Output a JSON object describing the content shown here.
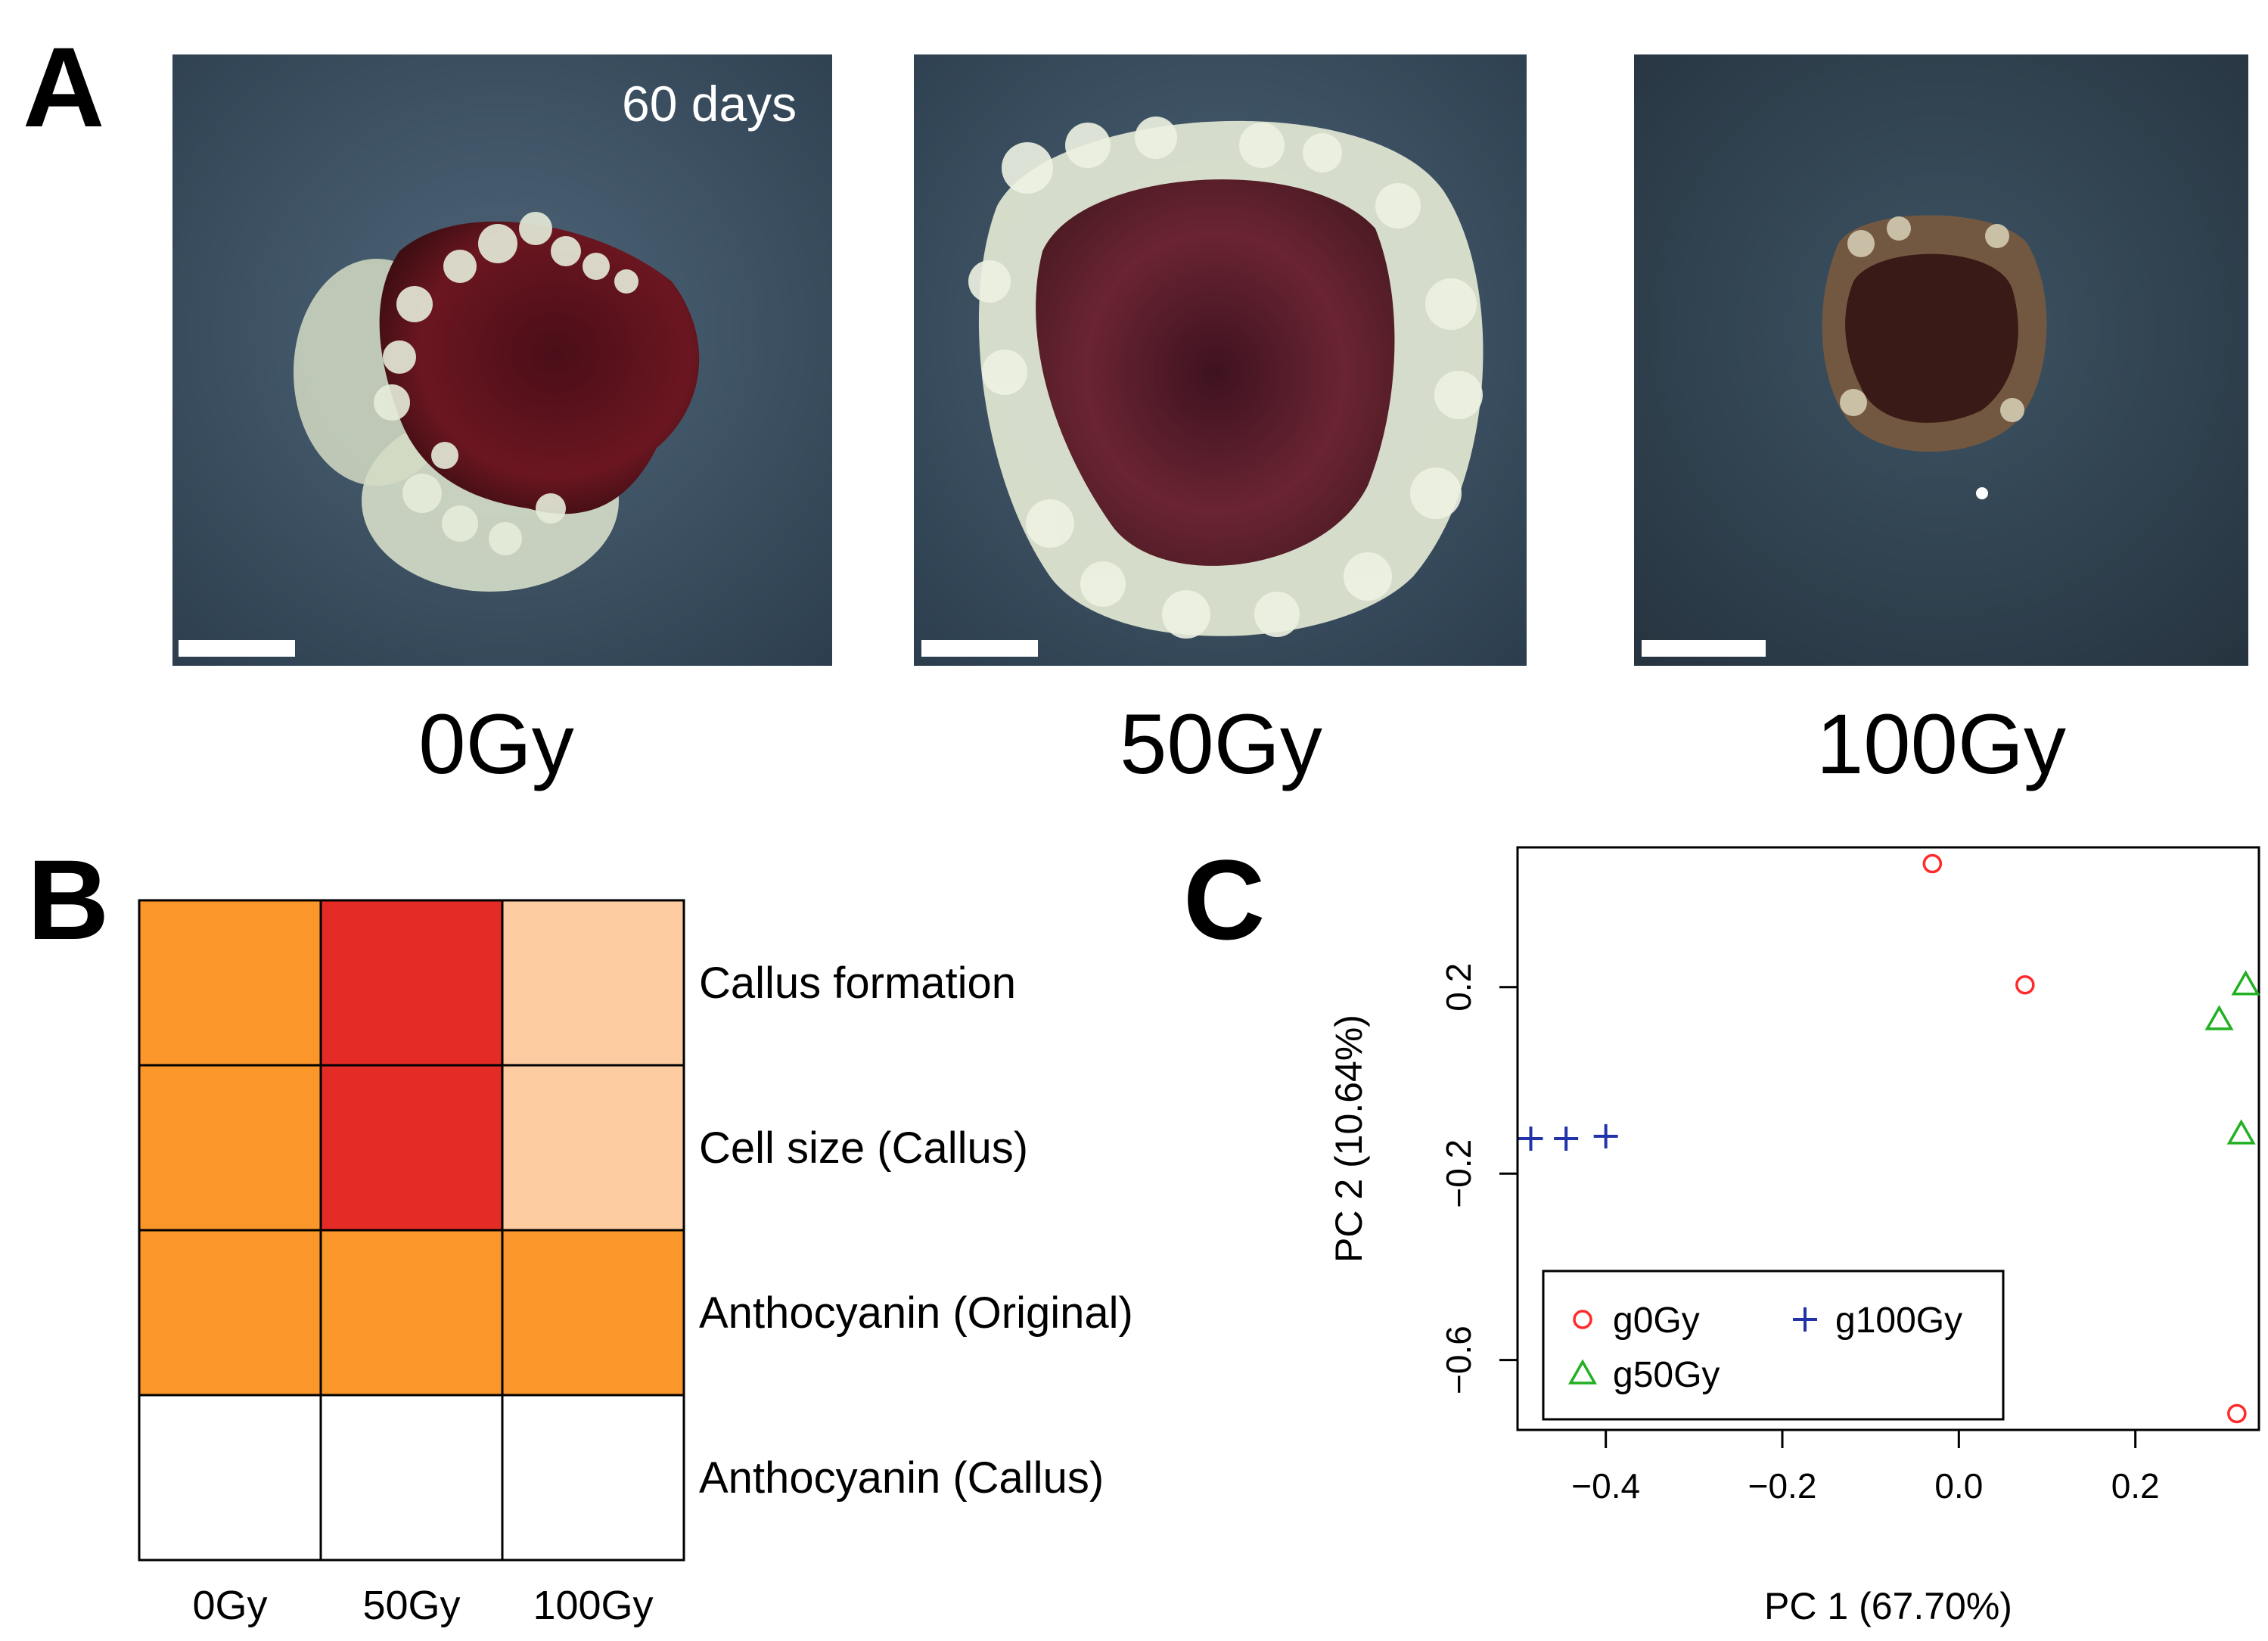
{
  "panel_a": {
    "letter": "A",
    "days_label": "60 days",
    "doses": [
      "0Gy",
      "50Gy",
      "100Gy"
    ]
  },
  "panel_b": {
    "letter": "B",
    "rows": [
      "Callus formation",
      "Cell size (Callus)",
      "Anthocyanin (Original)",
      "Anthocyanin (Callus)"
    ],
    "columns": [
      "0Gy",
      "50Gy",
      "100Gy"
    ],
    "cells": [
      [
        "#fb962a",
        "#e52b25",
        "#fccba0"
      ],
      [
        "#fb962a",
        "#e52b25",
        "#fccba0"
      ],
      [
        "#fb962a",
        "#fb962a",
        "#fb962a"
      ],
      [
        "#ffffff",
        "#ffffff",
        "#ffffff"
      ]
    ]
  },
  "panel_c": {
    "letter": "C",
    "chart_data": {
      "type": "scatter",
      "xlabel": "PC 1 (67.70%)",
      "ylabel": "PC 2 (10.64%)",
      "xlim": [
        -0.5,
        0.34
      ],
      "ylim": [
        -0.75,
        0.5
      ],
      "x_ticks": [
        -0.4,
        -0.2,
        0.0,
        0.2
      ],
      "x_tick_labels": [
        "−0.4",
        "−0.2",
        "0.0",
        "0.2"
      ],
      "y_ticks": [
        -0.6,
        -0.2,
        0.2
      ],
      "y_tick_labels": [
        "−0.6",
        "−0.2",
        "0.2"
      ],
      "series": [
        {
          "name": "g0Gy",
          "marker": "circle",
          "color": "#ff2a2a",
          "points": [
            [
              -0.03,
              0.465
            ],
            [
              0.075,
              0.205
            ],
            [
              0.315,
              -0.715
            ]
          ]
        },
        {
          "name": "g50Gy",
          "marker": "triangle",
          "color": "#22b022",
          "points": [
            [
              0.325,
              0.205
            ],
            [
              0.295,
              0.13
            ],
            [
              0.32,
              -0.115
            ]
          ]
        },
        {
          "name": "g100Gy",
          "marker": "plus",
          "color": "#2233a8",
          "points": [
            [
              -0.485,
              -0.125
            ],
            [
              -0.445,
              -0.125
            ],
            [
              -0.4,
              -0.12
            ]
          ]
        }
      ],
      "legend_position": "bottom-left"
    }
  }
}
